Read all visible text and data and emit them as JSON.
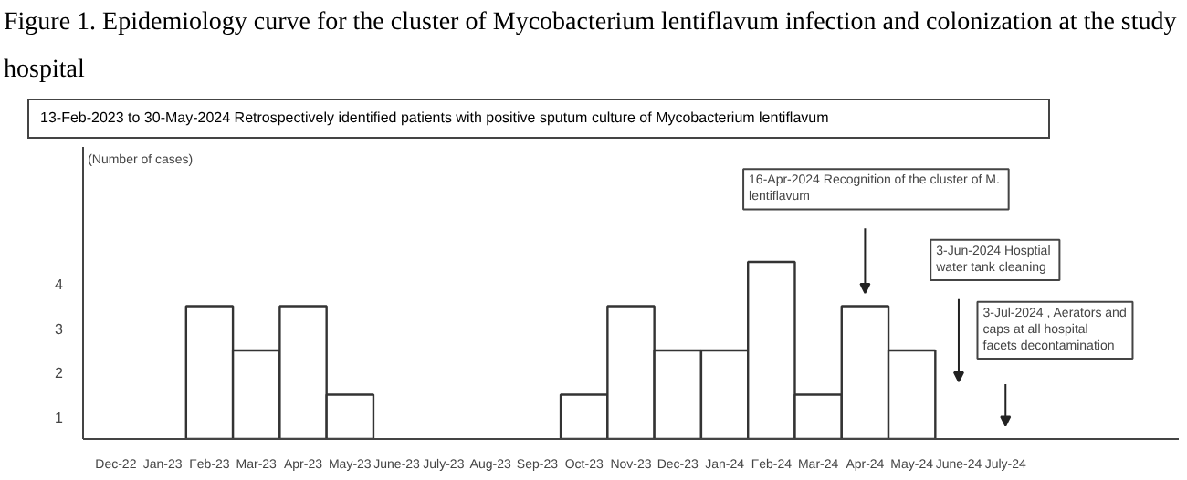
{
  "chart_data": {
    "type": "bar",
    "title": "Figure 1. Epidemiology curve for the cluster of Mycobacterium lentiflavum infection and colonization at the study hospital",
    "ylabel": "(Number of cases)",
    "categories": [
      "Dec-22",
      "Jan-23",
      "Feb-23",
      "Mar-23",
      "Apr-23",
      "May-23",
      "June-23",
      "July-23",
      "Aug-23",
      "Sep-23",
      "Oct-23",
      "Nov-23",
      "Dec-23",
      "Jan-24",
      "Feb-24",
      "Mar-24",
      "Apr-24",
      "May-24",
      "June-24",
      "July-24"
    ],
    "values": [
      0,
      0,
      3,
      2,
      3,
      1,
      0,
      0,
      0,
      0,
      1,
      3,
      2,
      2,
      4,
      1,
      3,
      2,
      0,
      0
    ],
    "color": "#ffffff",
    "ylim": [
      0,
      6.6
    ],
    "yticks": [
      {
        "value": 0.5,
        "label": "1"
      },
      {
        "value": 1.5,
        "label": "2"
      },
      {
        "value": 2.5,
        "label": "3"
      },
      {
        "value": 3.5,
        "label": "4"
      }
    ],
    "grid": false,
    "annotations": [
      "13-Feb-2023 to 30-May-2024    Retrospectively identified patients with positive sputum culture of Mycobacterium lentiflavum",
      "16-Apr-2024  Recognition of the cluster of M. lentiflavum",
      "3-Jun-2024  Hosptial water tank cleaning",
      "3-Jul-2024 , Aerators and caps at all hospital facets decontamination"
    ]
  }
}
